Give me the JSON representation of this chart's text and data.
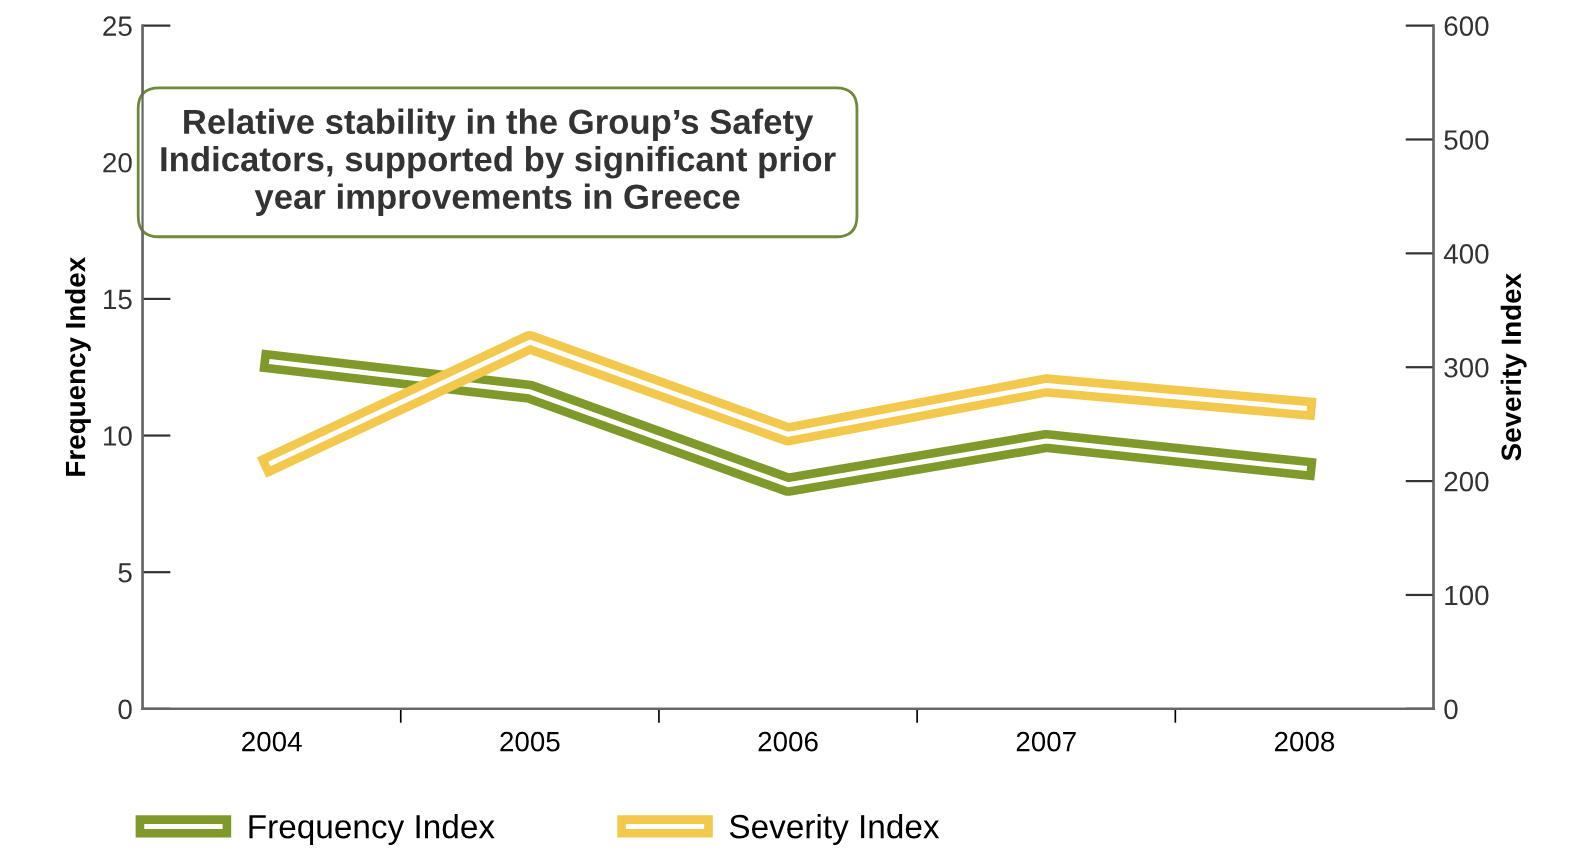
{
  "chart_data": {
    "type": "line",
    "title": "Relative stability in the Group’s Safety Indicators, supported by significant prior year improvements in Greece",
    "ylabel": "Frequency Index",
    "y2label": "Severity Index",
    "categories": [
      "2004",
      "2005",
      "2006",
      "2007",
      "2008"
    ],
    "series": [
      {
        "name": "Frequency Index",
        "color": "#7f9a2a",
        "values": [
          12.7,
          11.6,
          8.2,
          9.8,
          8.8
        ]
      },
      {
        "name": "Severity Index",
        "color": "#f2c94c",
        "axis": "y2",
        "values": [
          216,
          322,
          241,
          284,
          264
        ]
      }
    ],
    "ylim": [
      0,
      25
    ],
    "yticks": [
      0,
      5,
      10,
      15,
      20,
      25
    ],
    "y2lim": [
      0,
      600
    ],
    "y2ticks": [
      0,
      100,
      200,
      300,
      400,
      500,
      600
    ],
    "grid": false,
    "legend": "bottom",
    "marker": "none",
    "line_style": "solid"
  }
}
